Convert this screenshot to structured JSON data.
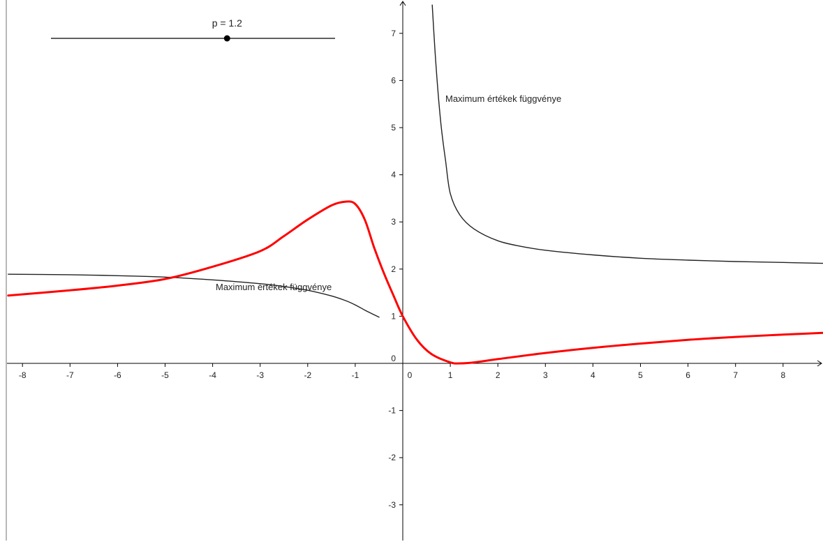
{
  "slider": {
    "label": "p = 1.2",
    "value": 1.2,
    "min": -5,
    "max": 5
  },
  "chart_data": {
    "type": "line",
    "title": "",
    "xlabel": "",
    "ylabel": "",
    "xlim": [
      -8.3,
      8.9
    ],
    "ylim": [
      -3.7,
      7.6
    ],
    "grid": false,
    "x_ticks": [
      -8,
      -7,
      -6,
      -5,
      -4,
      -3,
      -2,
      -1,
      0,
      1,
      2,
      3,
      4,
      5,
      6,
      7,
      8
    ],
    "y_ticks": [
      -3,
      -2,
      -1,
      0,
      1,
      2,
      3,
      4,
      5,
      6,
      7
    ],
    "colors": {
      "red_curve": "#ff0000",
      "max_curves": "#222222",
      "axes": "#000000"
    },
    "series": [
      {
        "label": "Maximum értékek függvénye",
        "color": "#222222",
        "points": [
          [
            -8.3,
            1.89
          ],
          [
            -7,
            1.88
          ],
          [
            -6,
            1.86
          ],
          [
            -5,
            1.83
          ],
          [
            -4,
            1.77
          ],
          [
            -3,
            1.69
          ],
          [
            -2.5,
            1.63
          ],
          [
            -2,
            1.55
          ],
          [
            -1.5,
            1.43
          ],
          [
            -1.2,
            1.33
          ],
          [
            -1,
            1.24
          ],
          [
            -0.8,
            1.13
          ],
          [
            -0.6,
            1.03
          ],
          [
            -0.5,
            0.98
          ]
        ]
      },
      {
        "label": "Maximum értékek függvénye",
        "color": "#222222",
        "points": [
          [
            0.62,
            7.6
          ],
          [
            0.7,
            6.3
          ],
          [
            0.8,
            5.1
          ],
          [
            0.9,
            4.3
          ],
          [
            1,
            3.6
          ],
          [
            1.2,
            3.15
          ],
          [
            1.5,
            2.85
          ],
          [
            2,
            2.6
          ],
          [
            2.5,
            2.48
          ],
          [
            3,
            2.4
          ],
          [
            4,
            2.3
          ],
          [
            5,
            2.23
          ],
          [
            6,
            2.19
          ],
          [
            7,
            2.16
          ],
          [
            8,
            2.14
          ],
          [
            8.9,
            2.12
          ]
        ]
      },
      {
        "color": "#ff0000",
        "points": [
          [
            -8.3,
            1.44
          ],
          [
            -7,
            1.55
          ],
          [
            -6,
            1.65
          ],
          [
            -5,
            1.79
          ],
          [
            -4,
            2.05
          ],
          [
            -3,
            2.38
          ],
          [
            -2.5,
            2.7
          ],
          [
            -2,
            3.05
          ],
          [
            -1.5,
            3.35
          ],
          [
            -1.2,
            3.43
          ],
          [
            -1,
            3.38
          ],
          [
            -0.8,
            3.05
          ],
          [
            -0.6,
            2.45
          ],
          [
            -0.4,
            1.92
          ],
          [
            -0.2,
            1.45
          ],
          [
            0,
            1.0
          ],
          [
            0.3,
            0.5
          ],
          [
            0.6,
            0.2
          ],
          [
            1.0,
            0.02
          ],
          [
            1.2,
            0.0
          ],
          [
            1.5,
            0.02
          ],
          [
            2,
            0.09
          ],
          [
            3,
            0.22
          ],
          [
            4,
            0.33
          ],
          [
            5,
            0.42
          ],
          [
            6,
            0.5
          ],
          [
            7,
            0.56
          ],
          [
            8,
            0.61
          ],
          [
            8.9,
            0.65
          ]
        ]
      }
    ]
  }
}
